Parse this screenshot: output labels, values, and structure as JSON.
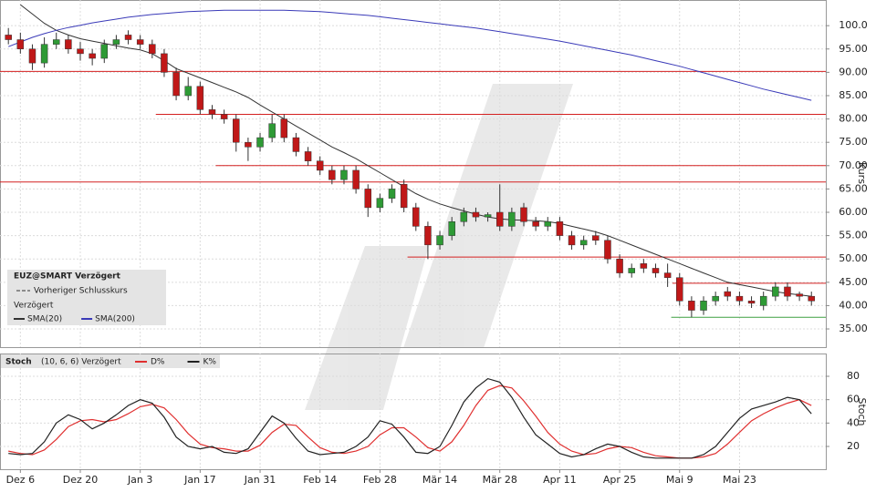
{
  "chart_data": [
    {
      "type": "candlestick",
      "title": "EUZ@SMART Verzögert",
      "subtitle": "Vorheriger Schlusskurs",
      "note": "Verzögert",
      "y_label": "Kurs",
      "xlim": [
        -0.7,
        68.2
      ],
      "ylim": [
        31.1,
        105.5
      ],
      "yticks": [
        {
          "value": 35,
          "label": "35.00"
        },
        {
          "value": 40,
          "label": "40.00"
        },
        {
          "value": 45,
          "label": "45.00"
        },
        {
          "value": 50,
          "label": "50.00"
        },
        {
          "value": 55,
          "label": "55.00"
        },
        {
          "value": 60,
          "label": "60.00"
        },
        {
          "value": 65,
          "label": "65.00"
        },
        {
          "value": 70,
          "label": "70.00"
        },
        {
          "value": 75,
          "label": "75.00"
        },
        {
          "value": 80,
          "label": "80.00"
        },
        {
          "value": 85,
          "label": "85.00"
        },
        {
          "value": 90,
          "label": "90.00"
        },
        {
          "value": 95,
          "label": "95.00"
        },
        {
          "value": 100,
          "label": "100.0"
        }
      ],
      "grid": true,
      "up_color": "#2e9a35",
      "down_color": "#c01818",
      "open": [
        98,
        97,
        95,
        92,
        96,
        97,
        95,
        94,
        93,
        96,
        98,
        97,
        96,
        94,
        90,
        85,
        87,
        82,
        81,
        80,
        75,
        74,
        76,
        80,
        76,
        73,
        71,
        69,
        67,
        69,
        65,
        61,
        63,
        66,
        61,
        57,
        53,
        55,
        58,
        60,
        59,
        60,
        57,
        61,
        58,
        57,
        58,
        55,
        53,
        55,
        54,
        50,
        47,
        49,
        48,
        47,
        46,
        41,
        39,
        41,
        43,
        42,
        41,
        40,
        42,
        44,
        42.5,
        42
      ],
      "high": [
        99.5,
        98.5,
        96,
        97.5,
        98.5,
        98,
        96.5,
        95,
        97,
        98,
        99,
        98,
        97,
        95,
        91,
        89,
        88,
        83,
        82,
        81,
        76,
        77,
        81,
        81,
        77,
        74,
        72,
        70,
        70,
        70,
        66,
        64,
        66,
        67,
        62,
        58,
        56,
        59,
        61,
        61,
        60,
        66,
        61,
        62,
        59,
        59,
        59,
        56,
        55,
        56,
        55,
        51,
        49,
        50,
        49,
        49,
        47,
        42,
        42,
        43,
        44,
        43,
        42,
        43,
        45,
        45,
        43,
        43
      ],
      "low": [
        96,
        94,
        90.5,
        91,
        95,
        94,
        92.5,
        91.5,
        92,
        95,
        96,
        95,
        93,
        89,
        84,
        84,
        81,
        80,
        79,
        73,
        71,
        73,
        75,
        75,
        72,
        70,
        68,
        66,
        66,
        64,
        59,
        60,
        62,
        60,
        56,
        50,
        52,
        54,
        57,
        58,
        58,
        56,
        56,
        57,
        56,
        56,
        54,
        52,
        52,
        53,
        49,
        46,
        46,
        47,
        46,
        44,
        40,
        37.5,
        38,
        40,
        41,
        40,
        39.5,
        39,
        41,
        41,
        41,
        40
      ],
      "close": [
        97,
        95,
        92,
        96,
        97,
        95,
        94,
        93,
        96,
        97,
        97,
        96,
        94,
        90,
        85,
        87,
        82,
        81,
        80,
        75,
        74,
        76,
        79,
        76,
        73,
        71,
        69,
        67,
        69,
        65,
        61,
        63,
        65,
        61,
        57,
        53,
        55,
        58,
        60,
        59,
        59.5,
        57,
        60,
        58,
        57,
        58,
        55,
        53,
        54,
        54,
        50,
        47,
        48,
        48,
        47,
        46,
        41,
        39,
        41,
        42,
        42,
        41,
        40.5,
        42,
        44,
        42,
        42,
        41
      ],
      "series": [
        {
          "name": "SMA(20)",
          "color": "#333333",
          "values": [
            null,
            104.5,
            102.5,
            100.5,
            99,
            98,
            97.2,
            96.7,
            96.2,
            95.7,
            95.2,
            94.8,
            94,
            92.5,
            90.8,
            89.8,
            88.8,
            87.8,
            86.8,
            85.8,
            84.6,
            83,
            81.5,
            80,
            78.5,
            77,
            75.5,
            74,
            72.8,
            71.5,
            70,
            68.5,
            67,
            65.5,
            64,
            62.8,
            61.8,
            61,
            60.3,
            59.6,
            59,
            58.6,
            58.4,
            58.3,
            58.2,
            58,
            57.6,
            57,
            56.4,
            55.8,
            55,
            54,
            53,
            52,
            51,
            50,
            49,
            48,
            47,
            46,
            45,
            44.5,
            44,
            43.5,
            43,
            42.6,
            42.3,
            42
          ]
        },
        {
          "name": "SMA(200)",
          "color": "#3a3ab8",
          "values": [
            95.5,
            96.5,
            97.5,
            98.3,
            99,
            99.6,
            100.1,
            100.6,
            101,
            101.4,
            101.8,
            102.1,
            102.4,
            102.6,
            102.8,
            103,
            103.1,
            103.2,
            103.3,
            103.3,
            103.3,
            103.3,
            103.3,
            103.3,
            103.2,
            103.1,
            103,
            102.8,
            102.6,
            102.4,
            102.2,
            101.9,
            101.6,
            101.3,
            101,
            100.7,
            100.4,
            100.1,
            99.8,
            99.5,
            99.1,
            98.7,
            98.3,
            97.9,
            97.5,
            97.1,
            96.7,
            96.2,
            95.7,
            95.2,
            94.7,
            94.2,
            93.7,
            93.1,
            92.5,
            91.9,
            91.3,
            90.6,
            89.9,
            89.2,
            88.5,
            87.8,
            87.1,
            86.4,
            85.8,
            85.2,
            84.6,
            84
          ]
        }
      ],
      "levels": [
        {
          "value": 90.2,
          "x": -0.7,
          "color": "#d42020"
        },
        {
          "value": 81,
          "x": 12.3,
          "color": "#d42020"
        },
        {
          "value": 70,
          "x": 17.3,
          "color": "#d42020"
        },
        {
          "value": 66.5,
          "x": -0.7,
          "color": "#d42020"
        },
        {
          "value": 50.4,
          "x": 33.3,
          "color": "#d42020"
        },
        {
          "value": 44.8,
          "x": 55.4,
          "color": "#d42020"
        },
        {
          "value": 37.5,
          "x": 55.3,
          "color": "#3fa040"
        }
      ]
    },
    {
      "type": "line",
      "title": "Stoch",
      "subtitle": "(10, 6, 6) Verzögert",
      "y_label": "Stoch",
      "xlim": [
        -0.7,
        68.2
      ],
      "xticks": [
        {
          "value": 1,
          "label": "Dez 6"
        },
        {
          "value": 6,
          "label": "Dez 20"
        },
        {
          "value": 11,
          "label": "Jan 3"
        },
        {
          "value": 16,
          "label": "Jan 17"
        },
        {
          "value": 21,
          "label": "Jan 31"
        },
        {
          "value": 26,
          "label": "Feb 14"
        },
        {
          "value": 31,
          "label": "Feb 28"
        },
        {
          "value": 36,
          "label": "Mär 14"
        },
        {
          "value": 41,
          "label": "Mär 28"
        },
        {
          "value": 46,
          "label": "Apr 11"
        },
        {
          "value": 51,
          "label": "Apr 25"
        },
        {
          "value": 56,
          "label": "Mai 9"
        },
        {
          "value": 61,
          "label": "Mai 23"
        }
      ],
      "ylim": [
        0.5,
        99.5
      ],
      "yticks": [
        20,
        40,
        60,
        80
      ],
      "grid": true,
      "series": [
        {
          "name": "D%",
          "color": "#e03030",
          "values": [
            16,
            14,
            13,
            17,
            26,
            37,
            42,
            43,
            41,
            43,
            48,
            54,
            56,
            53,
            43,
            31,
            22,
            19,
            18,
            16,
            16,
            21,
            32,
            39,
            38,
            28,
            19,
            15,
            14,
            16,
            20,
            30,
            36,
            36,
            28,
            19,
            16,
            24,
            38,
            55,
            68,
            72,
            70,
            59,
            46,
            32,
            22,
            16,
            13,
            14,
            18,
            20,
            19,
            15,
            12,
            11,
            10,
            10,
            11,
            14,
            22,
            32,
            42,
            48,
            53,
            57,
            60,
            55
          ]
        },
        {
          "name": "K%",
          "color": "#222222",
          "values": [
            14,
            13,
            14,
            24,
            40,
            47,
            43,
            35,
            40,
            47,
            55,
            60,
            57,
            45,
            28,
            20,
            18,
            20,
            15,
            14,
            18,
            32,
            46,
            40,
            27,
            16,
            13,
            14,
            15,
            20,
            28,
            42,
            39,
            28,
            15,
            14,
            20,
            38,
            58,
            70,
            78,
            75,
            62,
            45,
            30,
            22,
            14,
            11,
            13,
            18,
            22,
            20,
            15,
            11,
            10,
            10,
            10,
            10,
            13,
            20,
            32,
            44,
            52,
            55,
            58,
            62,
            60,
            48
          ]
        }
      ]
    }
  ]
}
